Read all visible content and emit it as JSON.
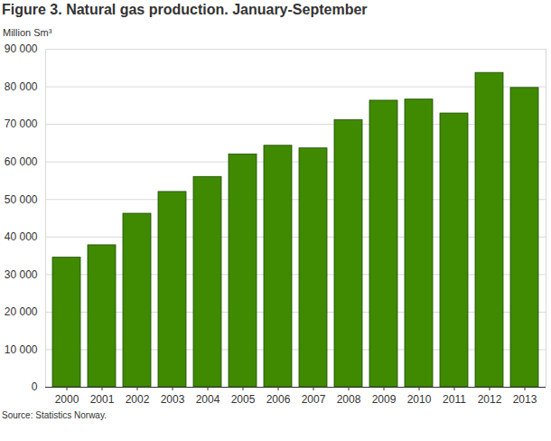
{
  "chart_data": {
    "type": "bar",
    "title": "Figure 3. Natural gas production. January-September",
    "y_label": "Million Sm³",
    "source": "Source: Statistics Norway.",
    "categories": [
      "2000",
      "2001",
      "2002",
      "2003",
      "2004",
      "2005",
      "2006",
      "2007",
      "2008",
      "2009",
      "2010",
      "2011",
      "2012",
      "2013"
    ],
    "values": [
      34500,
      37800,
      46200,
      52000,
      56000,
      62000,
      64300,
      63600,
      71100,
      76300,
      76600,
      72900,
      83700,
      79700
    ],
    "color": "#3f8a00",
    "ylim": [
      0,
      90000
    ],
    "yticks": [
      0,
      {
        "value": 10000,
        "label": "10 000"
      },
      {
        "value": 20000,
        "label": "20 000"
      },
      {
        "value": 30000,
        "label": "30 000"
      },
      {
        "value": 40000,
        "label": "40 000"
      },
      {
        "value": 50000,
        "label": "50 000"
      },
      {
        "value": 60000,
        "label": "60 000"
      },
      {
        "value": 70000,
        "label": "70 000"
      },
      {
        "value": 80000,
        "label": "80 000"
      },
      {
        "value": 90000,
        "label": "90 000"
      }
    ],
    "grid": true
  }
}
